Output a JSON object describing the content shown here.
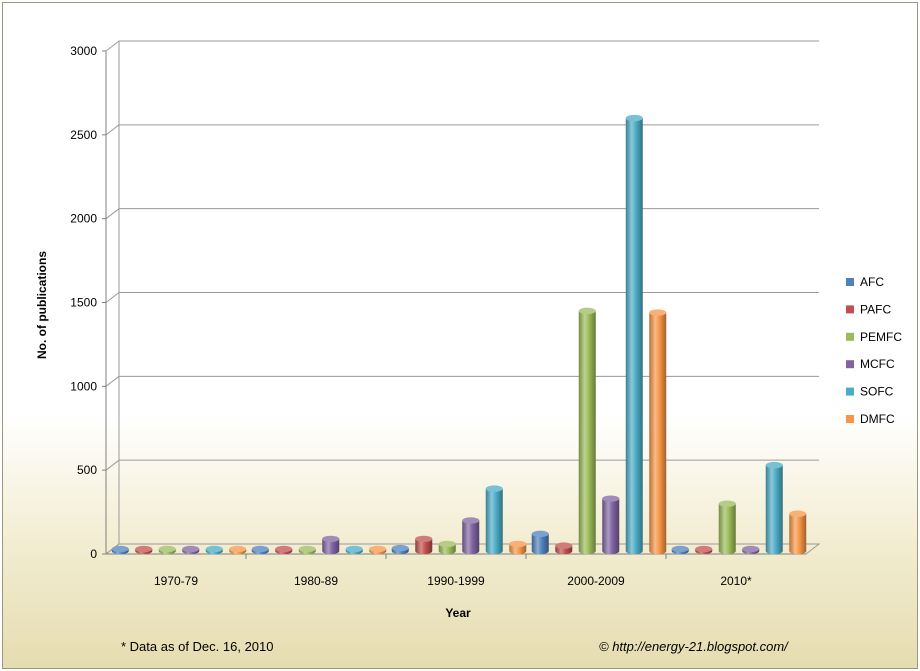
{
  "chart_data": {
    "type": "bar",
    "title": "",
    "xlabel": "Year",
    "ylabel": "No. of publications",
    "ylim": [
      0,
      3000
    ],
    "yticks": [
      0,
      500,
      1000,
      1500,
      2000,
      2500,
      3000
    ],
    "categories": [
      "1970-79",
      "1980-89",
      "1990-1999",
      "2000-2009",
      "2010*"
    ],
    "series": [
      {
        "name": "AFC",
        "color": "#4f81bd",
        "values": [
          3,
          5,
          35,
          120,
          25
        ]
      },
      {
        "name": "PAFC",
        "color": "#c0504d",
        "values": [
          2,
          25,
          90,
          50,
          3
        ]
      },
      {
        "name": "PEMFC",
        "color": "#9bbb59",
        "values": [
          1,
          2,
          60,
          1450,
          300
        ]
      },
      {
        "name": "MCFC",
        "color": "#8064a2",
        "values": [
          10,
          90,
          200,
          330,
          30
        ]
      },
      {
        "name": "SOFC",
        "color": "#4bacc6",
        "values": [
          3,
          10,
          390,
          2600,
          530
        ]
      },
      {
        "name": "DMFC",
        "color": "#f79646",
        "values": [
          1,
          2,
          60,
          1440,
          240
        ]
      }
    ],
    "legend_position": "right",
    "grid": true
  },
  "footnote_left": "* Data as of Dec. 16, 2010",
  "footnote_right": "© http://energy-21.blogspot.com/"
}
